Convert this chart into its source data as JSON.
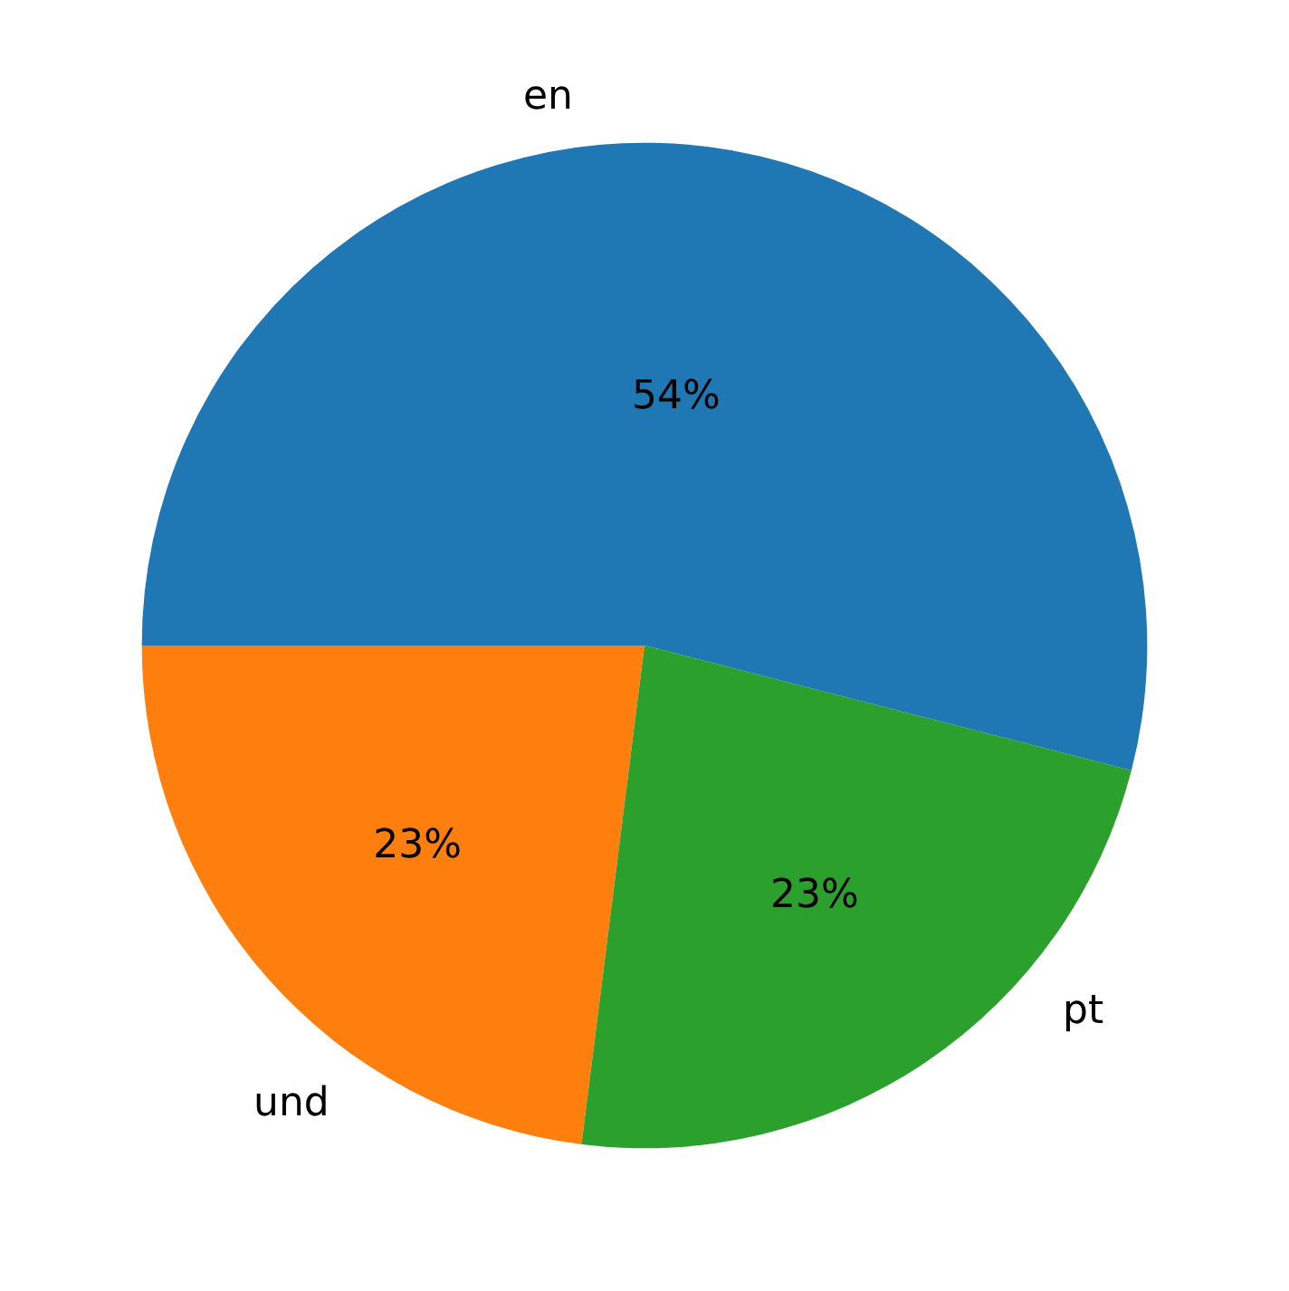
{
  "chart_data": {
    "type": "pie",
    "categories": [
      "en",
      "und",
      "pt"
    ],
    "values": [
      54,
      23,
      23
    ],
    "colors": [
      "#1f77b4",
      "#ff7f0e",
      "#2ca02c"
    ],
    "value_labels": [
      "54%",
      "23%",
      "23%"
    ],
    "legend": false
  }
}
